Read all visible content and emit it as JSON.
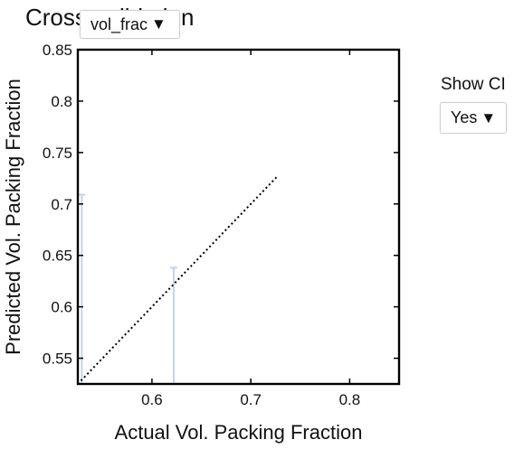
{
  "title": "Cross-validation",
  "variable_dropdown": {
    "selected": "vol_frac",
    "arrow_icon": "triangle-down-icon"
  },
  "show_ci": {
    "label": "Show CI",
    "selected": "Yes",
    "arrow_icon": "triangle-down-icon"
  },
  "chart_data": {
    "type": "scatter",
    "title": "Cross-validation",
    "xlabel": "Actual Vol. Packing Fraction",
    "ylabel": "Predicted Vol. Packing Fraction",
    "xlim": [
      0.525,
      0.85
    ],
    "ylim": [
      0.525,
      0.85
    ],
    "x_ticks": [
      0.6,
      0.7,
      0.8
    ],
    "x_tick_labels": [
      "0.6",
      "0.7",
      "0.8"
    ],
    "y_ticks": [
      0.55,
      0.6,
      0.65,
      0.7,
      0.75,
      0.8,
      0.85
    ],
    "y_tick_labels": [
      "0.55",
      "0.6",
      "0.65",
      "0.7",
      "0.75",
      "0.8",
      "0.85"
    ],
    "grid": false,
    "identity_line": {
      "from": [
        0.525,
        0.525
      ],
      "to": [
        0.727,
        0.727
      ],
      "style": "dotted",
      "color": "#000000"
    },
    "error_bars": [
      {
        "x": 0.529,
        "low": 0.525,
        "high": 0.709
      },
      {
        "x": 0.622,
        "low": 0.525,
        "high": 0.638
      }
    ],
    "error_bar_color": "#c5d5e6"
  }
}
